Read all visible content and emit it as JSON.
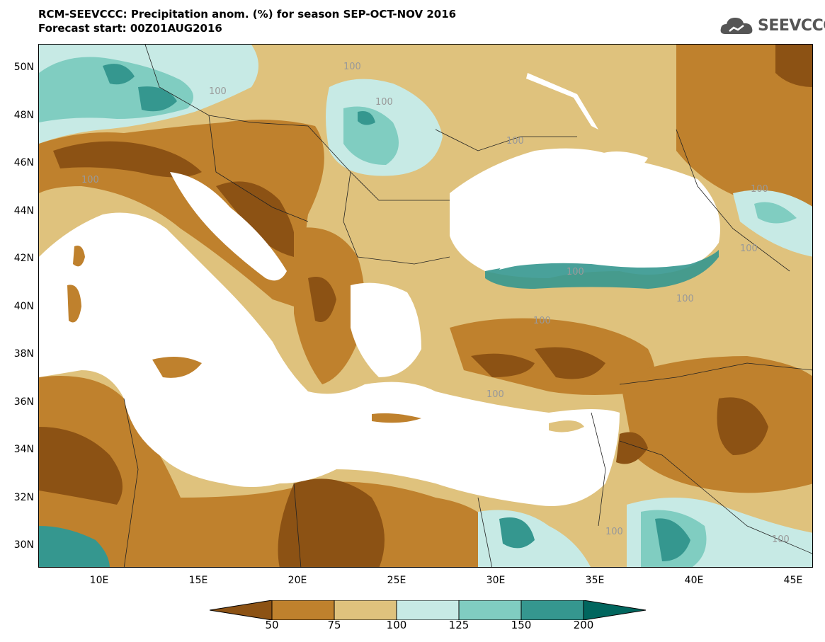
{
  "header": {
    "title_line1": "RCM-SEEVCCC: Precipitation anom. (%) for season SEP-OCT-NOV 2016",
    "title_line2": "Forecast start: 00Z01AUG2016"
  },
  "logo": {
    "text": "SEEVCCC",
    "icon": "cloud-icon"
  },
  "map": {
    "lat_labels": [
      "50N",
      "48N",
      "46N",
      "44N",
      "42N",
      "40N",
      "38N",
      "36N",
      "34N",
      "32N",
      "30N"
    ],
    "lon_labels": [
      "10E",
      "15E",
      "20E",
      "25E",
      "30E",
      "35E",
      "40E",
      "45E"
    ],
    "contour_labels": [
      "100",
      "100",
      "100",
      "100",
      "100",
      "100",
      "100",
      "100",
      "100",
      "100",
      "100",
      "100",
      "100"
    ],
    "colors": {
      "sea": "#ffffff",
      "lt50": "#8c5214",
      "c50_75": "#bf812d",
      "c75_100": "#dfc27d",
      "c100_125": "#c7eae5",
      "c125_150": "#80cdc1",
      "c150_200": "#35978f",
      "gt200": "#01665e",
      "contour": "#a0a0a0"
    }
  },
  "colorbar": {
    "labels": [
      "50",
      "75",
      "100",
      "125",
      "150",
      "200"
    ]
  }
}
